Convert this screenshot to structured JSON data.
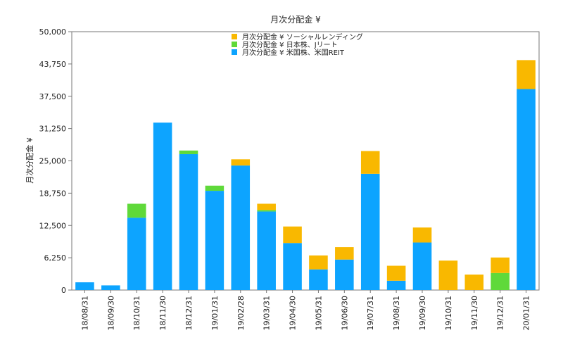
{
  "chart_data": {
    "type": "bar",
    "stacked": true,
    "title": "月次分配金 ¥",
    "xlabel": "",
    "ylabel": "月次分配金 ¥",
    "ylim": [
      0,
      50000
    ],
    "yticks": [
      "0",
      "6,250",
      "12,500",
      "18,750",
      "25,000",
      "31,250",
      "37,500",
      "43,750",
      "50,000"
    ],
    "ytick_values": [
      0,
      6250,
      12500,
      18750,
      25000,
      31250,
      37500,
      43750,
      50000
    ],
    "grid": false,
    "legend_position": "top-center",
    "categories": [
      "18/08/31",
      "18/09/30",
      "18/10/31",
      "18/11/30",
      "18/12/31",
      "19/01/31",
      "19/02/28",
      "19/03/31",
      "19/04/30",
      "19/05/31",
      "19/06/30",
      "19/07/31",
      "19/08/31",
      "19/09/30",
      "19/10/31",
      "19/11/30",
      "19/12/31",
      "20/01/31"
    ],
    "series": [
      {
        "name": "月次分配金 ¥ 米国株、米国REIT",
        "color": "#0da4ff",
        "values": [
          1500,
          900,
          14000,
          32400,
          26300,
          19200,
          24100,
          15200,
          9100,
          4000,
          5900,
          22500,
          1800,
          9200,
          0,
          0,
          0,
          38900
        ]
      },
      {
        "name": "月次分配金 ¥ 日本株、Jリート",
        "color": "#5fd93a",
        "values": [
          0,
          0,
          2700,
          0,
          700,
          1000,
          0,
          300,
          0,
          0,
          0,
          0,
          0,
          0,
          0,
          0,
          3300,
          0
        ]
      },
      {
        "name": "月次分配金 ¥ ソーシャルレンディング",
        "color": "#f9b800",
        "values": [
          0,
          0,
          0,
          0,
          0,
          0,
          1200,
          1200,
          3200,
          2700,
          2400,
          4400,
          2900,
          2900,
          5700,
          3000,
          3000,
          5600
        ]
      }
    ]
  }
}
